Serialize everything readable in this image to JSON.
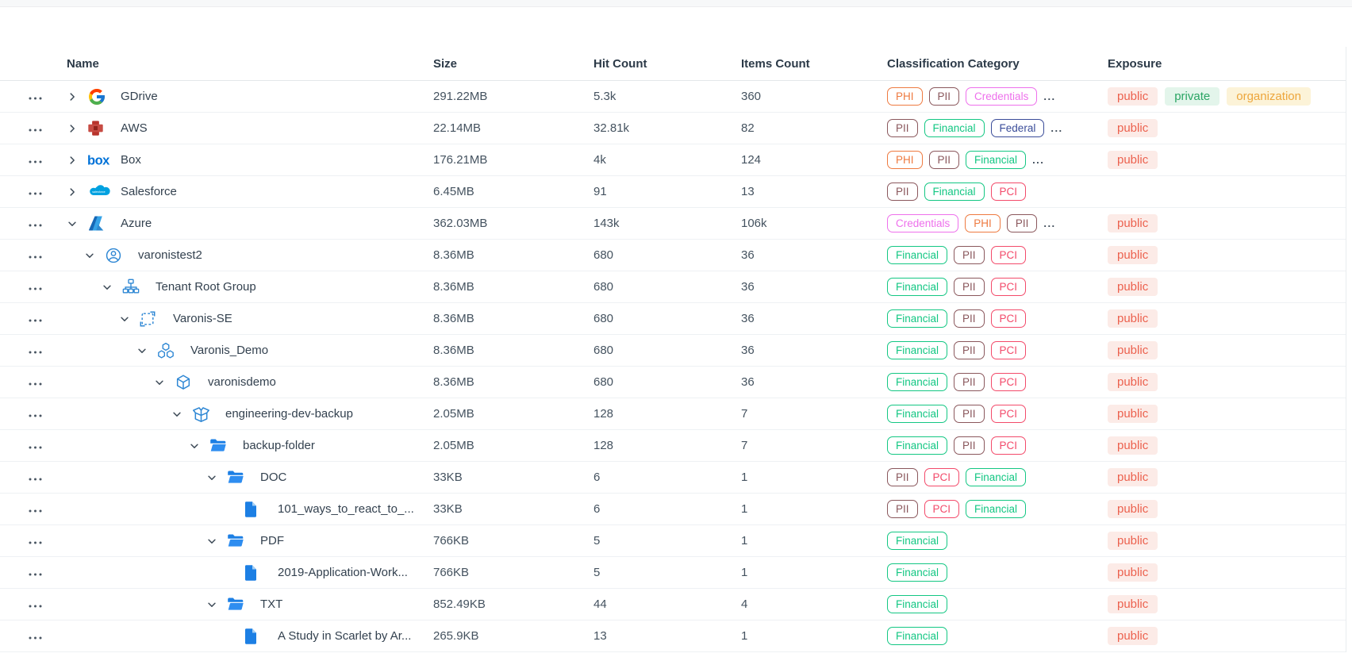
{
  "table": {
    "columns": {
      "name": "Name",
      "size": "Size",
      "hit_count": "Hit Count",
      "items_count": "Items Count",
      "classification": "Classification Category",
      "exposure": "Exposure"
    },
    "more_indicator": "...",
    "category_styles": {
      "PHI": "#EE7A40",
      "PII": "#8A575C",
      "Credentials": "#EE70EC",
      "Financial": "#13C783",
      "Federal": "#3A4C99",
      "PCI": "#F34A6A"
    },
    "exposure_styles": {
      "public": {
        "bg": "#FCEBE7",
        "fg": "#EC614E"
      },
      "private": {
        "bg": "#E3F5EB",
        "fg": "#2AA564"
      },
      "organization": {
        "bg": "#FCF3D8",
        "fg": "#EDA63C"
      }
    },
    "rows": [
      {
        "name": "GDrive",
        "icon": "gdrive-icon",
        "level": 0,
        "chevron": "right",
        "size": "291.22MB",
        "hit": "5.3k",
        "items": "360",
        "categories": [
          "PHI",
          "PII",
          "Credentials"
        ],
        "more": true,
        "exposure": [
          "public",
          "private",
          "organization"
        ]
      },
      {
        "name": "AWS",
        "icon": "aws-icon",
        "level": 0,
        "chevron": "right",
        "size": "22.14MB",
        "hit": "32.81k",
        "items": "82",
        "categories": [
          "PII",
          "Financial",
          "Federal"
        ],
        "more": true,
        "exposure": [
          "public"
        ]
      },
      {
        "name": "Box",
        "icon": "box-logo-icon",
        "level": 0,
        "chevron": "right",
        "size": "176.21MB",
        "hit": "4k",
        "items": "124",
        "categories": [
          "PHI",
          "PII",
          "Financial"
        ],
        "more": true,
        "exposure": [
          "public"
        ]
      },
      {
        "name": "Salesforce",
        "icon": "salesforce-icon",
        "level": 0,
        "chevron": "right",
        "size": "6.45MB",
        "hit": "91",
        "items": "13",
        "categories": [
          "PII",
          "Financial",
          "PCI"
        ],
        "more": false,
        "exposure": []
      },
      {
        "name": "Azure",
        "icon": "azure-icon",
        "level": 0,
        "chevron": "down",
        "size": "362.03MB",
        "hit": "143k",
        "items": "106k",
        "categories": [
          "Credentials",
          "PHI",
          "PII"
        ],
        "more": true,
        "exposure": [
          "public"
        ]
      },
      {
        "name": "varonistest2",
        "icon": "user-account-icon",
        "level": 1,
        "chevron": "down",
        "size": "8.36MB",
        "hit": "680",
        "items": "36",
        "categories": [
          "Financial",
          "PII",
          "PCI"
        ],
        "more": false,
        "exposure": [
          "public"
        ]
      },
      {
        "name": "Tenant Root Group",
        "icon": "org-group-icon",
        "level": 2,
        "chevron": "down",
        "size": "8.36MB",
        "hit": "680",
        "items": "36",
        "categories": [
          "Financial",
          "PII",
          "PCI"
        ],
        "more": false,
        "exposure": [
          "public"
        ]
      },
      {
        "name": "Varonis-SE",
        "icon": "subscription-icon",
        "level": 3,
        "chevron": "down",
        "size": "8.36MB",
        "hit": "680",
        "items": "36",
        "categories": [
          "Financial",
          "PII",
          "PCI"
        ],
        "more": false,
        "exposure": [
          "public"
        ]
      },
      {
        "name": "Varonis_Demo",
        "icon": "resource-group-icon",
        "level": 4,
        "chevron": "down",
        "size": "8.36MB",
        "hit": "680",
        "items": "36",
        "categories": [
          "Financial",
          "PII",
          "PCI"
        ],
        "more": false,
        "exposure": [
          "public"
        ]
      },
      {
        "name": "varonisdemo",
        "icon": "storage-cube-icon",
        "level": 5,
        "chevron": "down",
        "size": "8.36MB",
        "hit": "680",
        "items": "36",
        "categories": [
          "Financial",
          "PII",
          "PCI"
        ],
        "more": false,
        "exposure": [
          "public"
        ]
      },
      {
        "name": "engineering-dev-backup",
        "icon": "container-box-icon",
        "level": 6,
        "chevron": "down",
        "size": "2.05MB",
        "hit": "128",
        "items": "7",
        "categories": [
          "Financial",
          "PII",
          "PCI"
        ],
        "more": false,
        "exposure": [
          "public"
        ]
      },
      {
        "name": "backup-folder",
        "icon": "folder-icon",
        "level": 7,
        "chevron": "down",
        "size": "2.05MB",
        "hit": "128",
        "items": "7",
        "categories": [
          "Financial",
          "PII",
          "PCI"
        ],
        "more": false,
        "exposure": [
          "public"
        ]
      },
      {
        "name": "DOC",
        "icon": "folder-icon",
        "level": 8,
        "chevron": "down",
        "size": "33KB",
        "hit": "6",
        "items": "1",
        "categories": [
          "PII",
          "PCI",
          "Financial"
        ],
        "more": false,
        "exposure": [
          "public"
        ]
      },
      {
        "name": "101_ways_to_react_to_...",
        "icon": "file-icon",
        "level": 9,
        "chevron": "none",
        "size": "33KB",
        "hit": "6",
        "items": "1",
        "categories": [
          "PII",
          "PCI",
          "Financial"
        ],
        "more": false,
        "exposure": [
          "public"
        ]
      },
      {
        "name": "PDF",
        "icon": "folder-icon",
        "level": 8,
        "chevron": "down",
        "size": "766KB",
        "hit": "5",
        "items": "1",
        "categories": [
          "Financial"
        ],
        "more": false,
        "exposure": [
          "public"
        ]
      },
      {
        "name": "2019-Application-Work...",
        "icon": "file-icon",
        "level": 9,
        "chevron": "none",
        "size": "766KB",
        "hit": "5",
        "items": "1",
        "categories": [
          "Financial"
        ],
        "more": false,
        "exposure": [
          "public"
        ]
      },
      {
        "name": "TXT",
        "icon": "folder-icon",
        "level": 8,
        "chevron": "down",
        "size": "852.49KB",
        "hit": "44",
        "items": "4",
        "categories": [
          "Financial"
        ],
        "more": false,
        "exposure": [
          "public"
        ]
      },
      {
        "name": "A Study in Scarlet by Ar...",
        "icon": "file-icon",
        "level": 9,
        "chevron": "none",
        "size": "265.9KB",
        "hit": "13",
        "items": "1",
        "categories": [
          "Financial"
        ],
        "more": false,
        "exposure": [
          "public"
        ]
      }
    ]
  }
}
